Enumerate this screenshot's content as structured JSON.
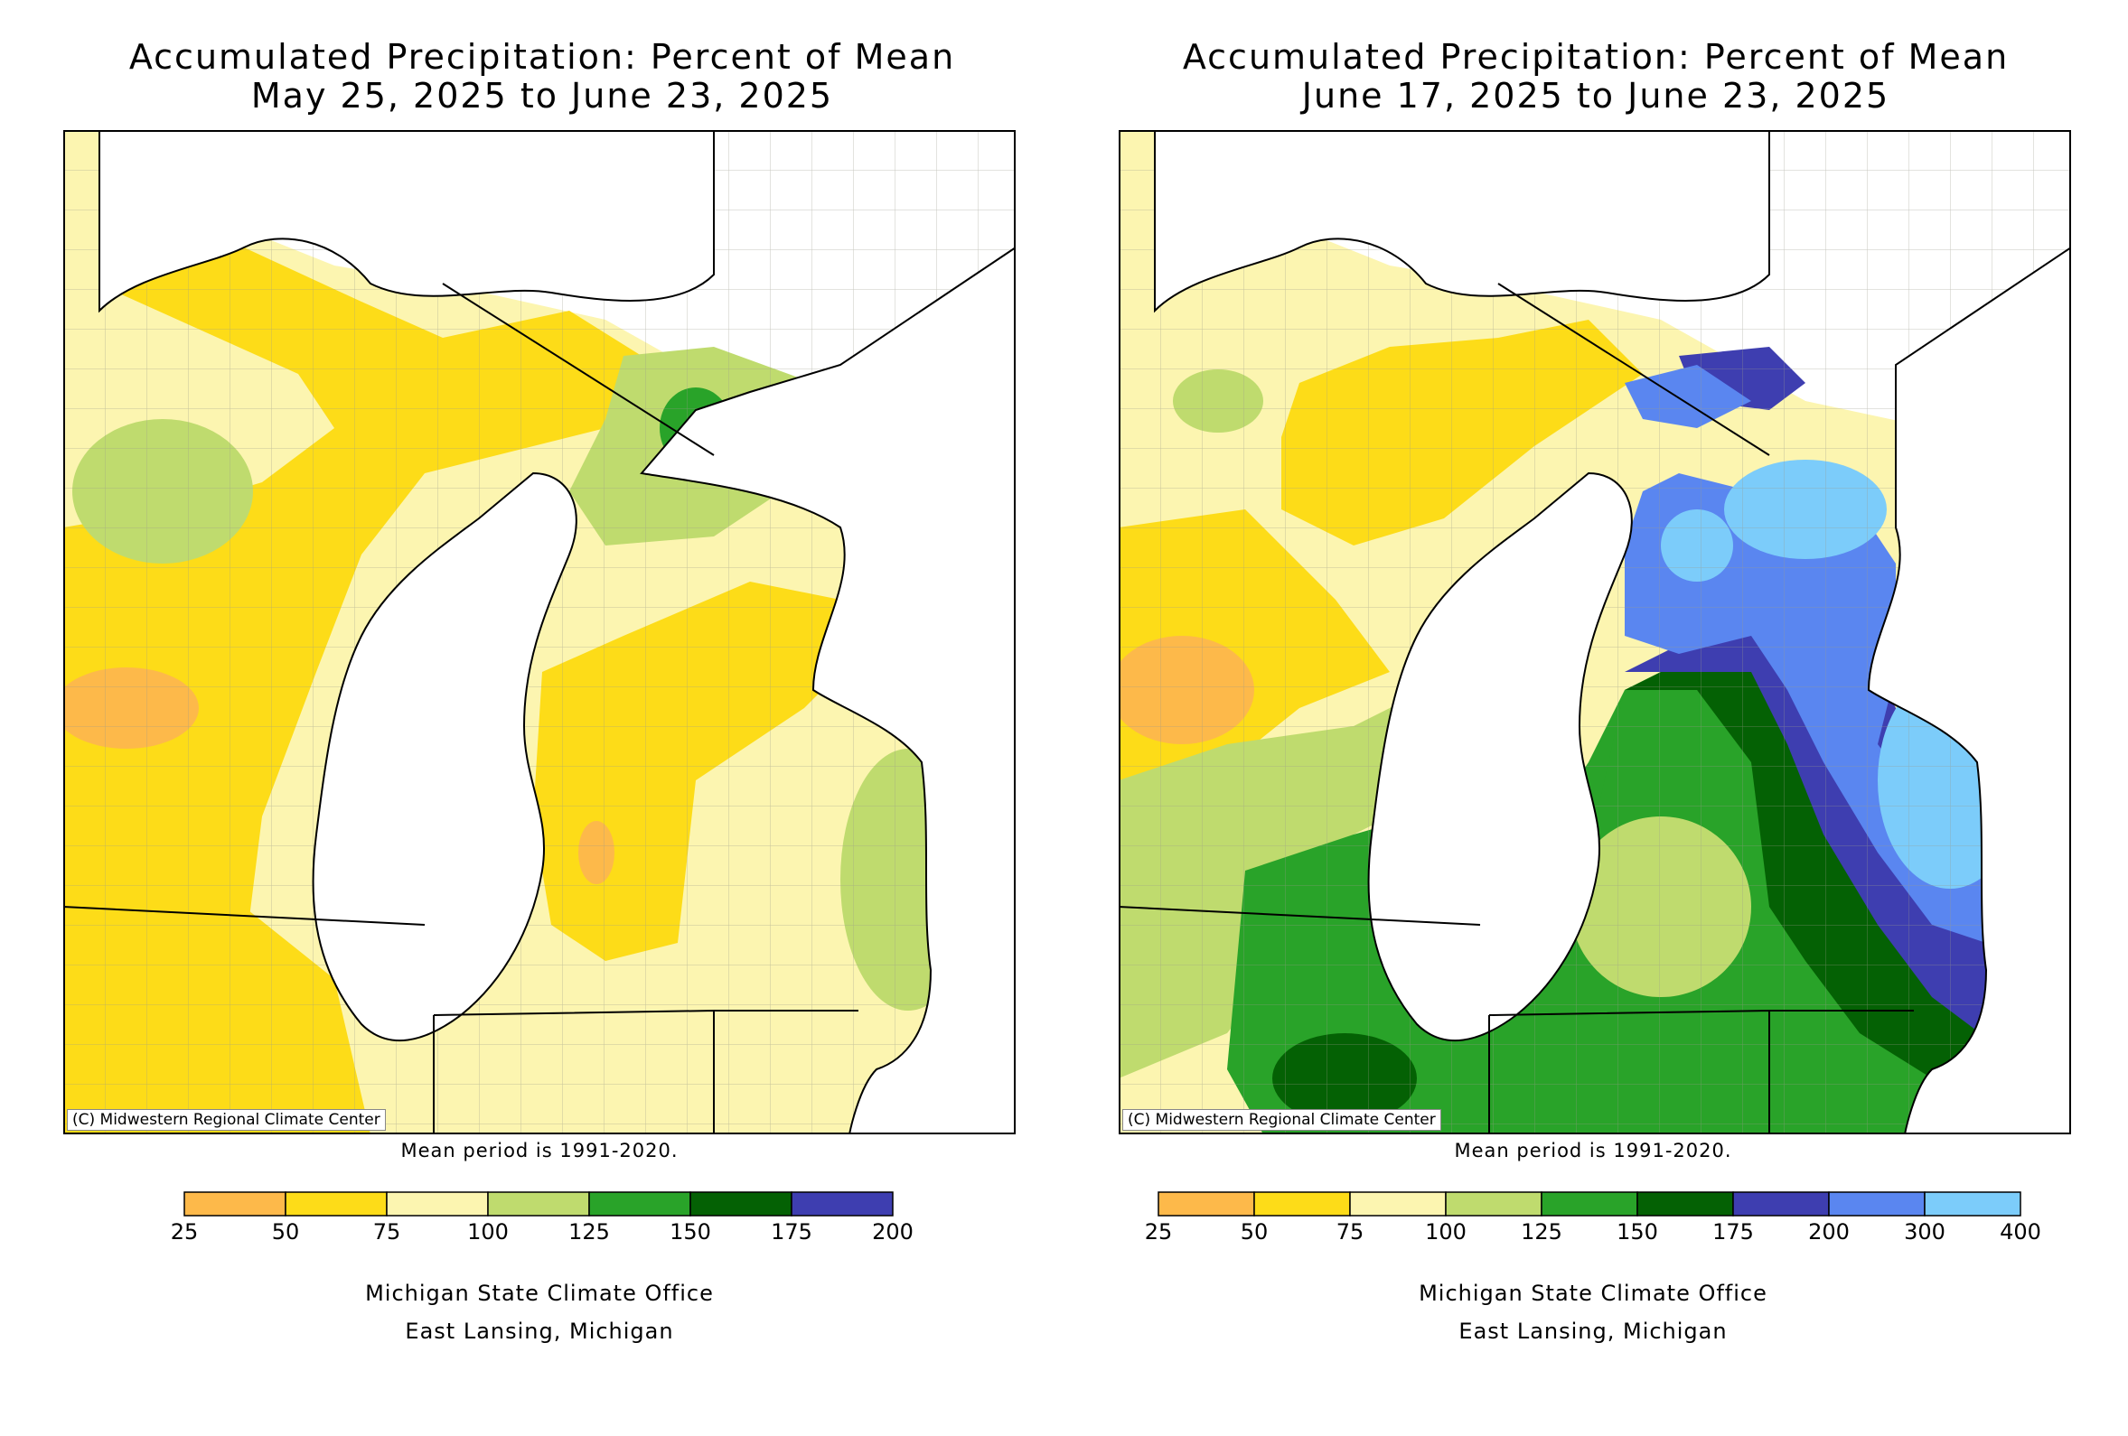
{
  "panels": [
    {
      "title_line1": "Accumulated Precipitation: Percent of Mean",
      "title_line2": "May 25, 2025 to June 23, 2025",
      "credit": "(C) Midwestern Regional Climate Center",
      "mean_note": "Mean period is 1991-2020.",
      "office_line1": "Michigan State Climate Office",
      "office_line2": "East Lansing, Michigan",
      "legend": {
        "ticks": [
          "25",
          "50",
          "75",
          "100",
          "125",
          "150",
          "175",
          "200"
        ],
        "colors": [
          "#FDB94A",
          "#FDDC18",
          "#FCF5B0",
          "#BFDB6E",
          "#29A329",
          "#046104",
          "#3E3EB0"
        ]
      }
    },
    {
      "title_line1": "Accumulated Precipitation: Percent of Mean",
      "title_line2": "June 17, 2025 to June 23, 2025",
      "credit": "(C) Midwestern Regional Climate Center",
      "mean_note": "Mean period is 1991-2020.",
      "office_line1": "Michigan State Climate Office",
      "office_line2": "East Lansing, Michigan",
      "legend": {
        "ticks": [
          "25",
          "50",
          "75",
          "100",
          "125",
          "150",
          "175",
          "200",
          "300",
          "400"
        ],
        "colors": [
          "#FDB94A",
          "#FDDC18",
          "#FCF5B0",
          "#BFDB6E",
          "#29A329",
          "#046104",
          "#3E3EB0",
          "#5A86F0",
          "#7CCCFA"
        ]
      }
    }
  ]
}
